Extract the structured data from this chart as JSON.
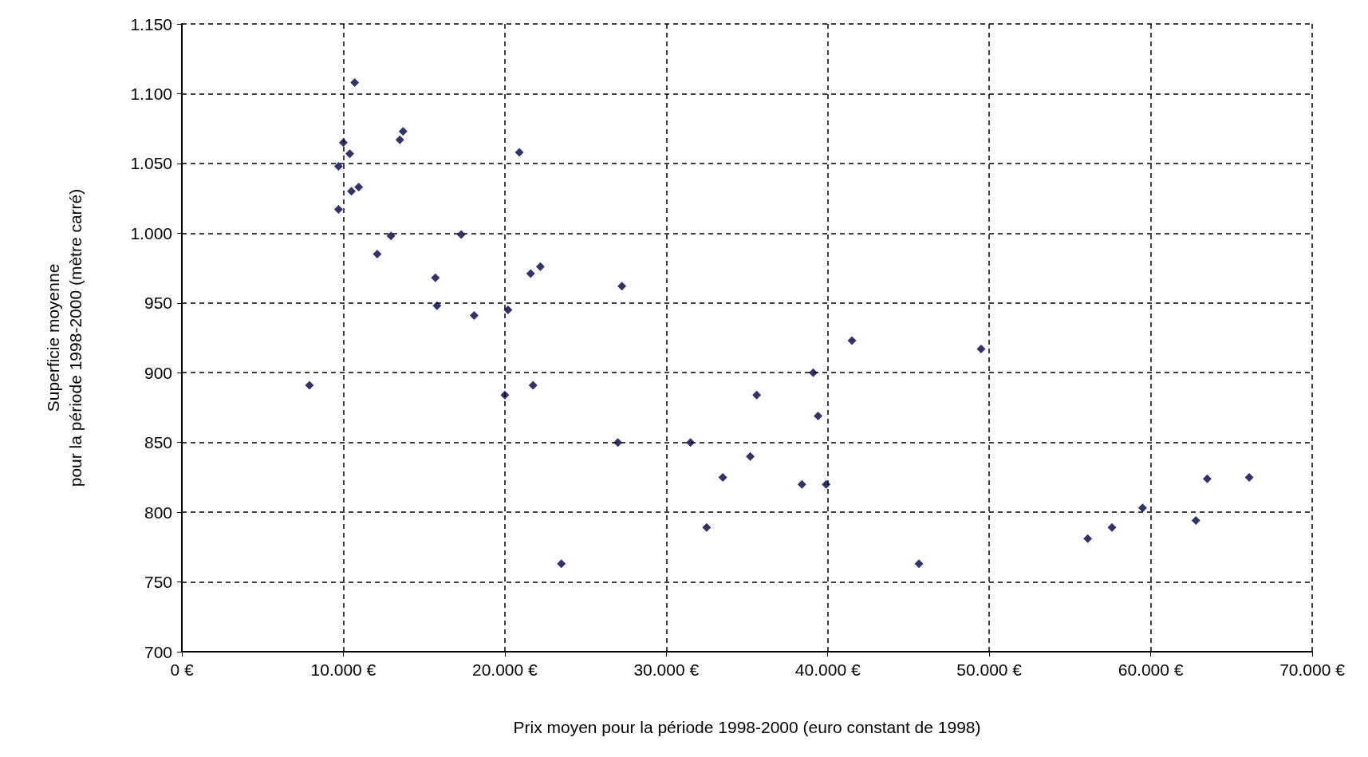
{
  "chart_data": {
    "type": "scatter",
    "xlabel": "Prix moyen pour la période 1998-2000 (euro constant de 1998)",
    "ylabel": "Superficie moyenne\npour la période 1998-2000 (mètre carré)",
    "marker": "diamond",
    "grid": true,
    "xlim": [
      0,
      70000
    ],
    "ylim": [
      700,
      1150
    ],
    "xticks": [
      {
        "value": 0,
        "label": "0 €"
      },
      {
        "value": 10000,
        "label": "10.000 €"
      },
      {
        "value": 20000,
        "label": "20.000 €"
      },
      {
        "value": 30000,
        "label": "30.000 €"
      },
      {
        "value": 40000,
        "label": "40.000 €"
      },
      {
        "value": 50000,
        "label": "50.000 €"
      },
      {
        "value": 60000,
        "label": "60.000 €"
      },
      {
        "value": 70000,
        "label": "70.000 €"
      }
    ],
    "yticks": [
      700,
      750,
      800,
      850,
      900,
      950,
      {
        "value": 1000,
        "label": "1.000"
      },
      {
        "value": 1050,
        "label": "1.050"
      },
      {
        "value": 1100,
        "label": "1.100"
      },
      {
        "value": 1150,
        "label": "1.150"
      }
    ],
    "series": [
      {
        "color": "#000040",
        "x": [
          7900,
          9700,
          9700,
          10000,
          10400,
          10700,
          10500,
          10950,
          12100,
          12950,
          13500,
          13700,
          15700,
          15800,
          17300,
          18100,
          20000,
          20200,
          20900,
          21600,
          21750,
          22200,
          23500,
          27250,
          27000,
          31500,
          32500,
          33500,
          35200,
          35600,
          38400,
          39100,
          39400,
          39900,
          41500,
          45650,
          49500,
          56100,
          57600,
          59500,
          62800,
          63500,
          66100
        ],
        "values": [
          891,
          1048,
          1017,
          1065,
          1057,
          1108,
          1030,
          1033,
          985,
          998,
          1067,
          1073,
          968,
          948,
          999,
          941,
          884,
          945,
          1058,
          971,
          891,
          976,
          763,
          962,
          850,
          850,
          789,
          825,
          840,
          884,
          820,
          900,
          869,
          820,
          923,
          763,
          917,
          781,
          789,
          803,
          794,
          824,
          825
        ]
      }
    ]
  }
}
